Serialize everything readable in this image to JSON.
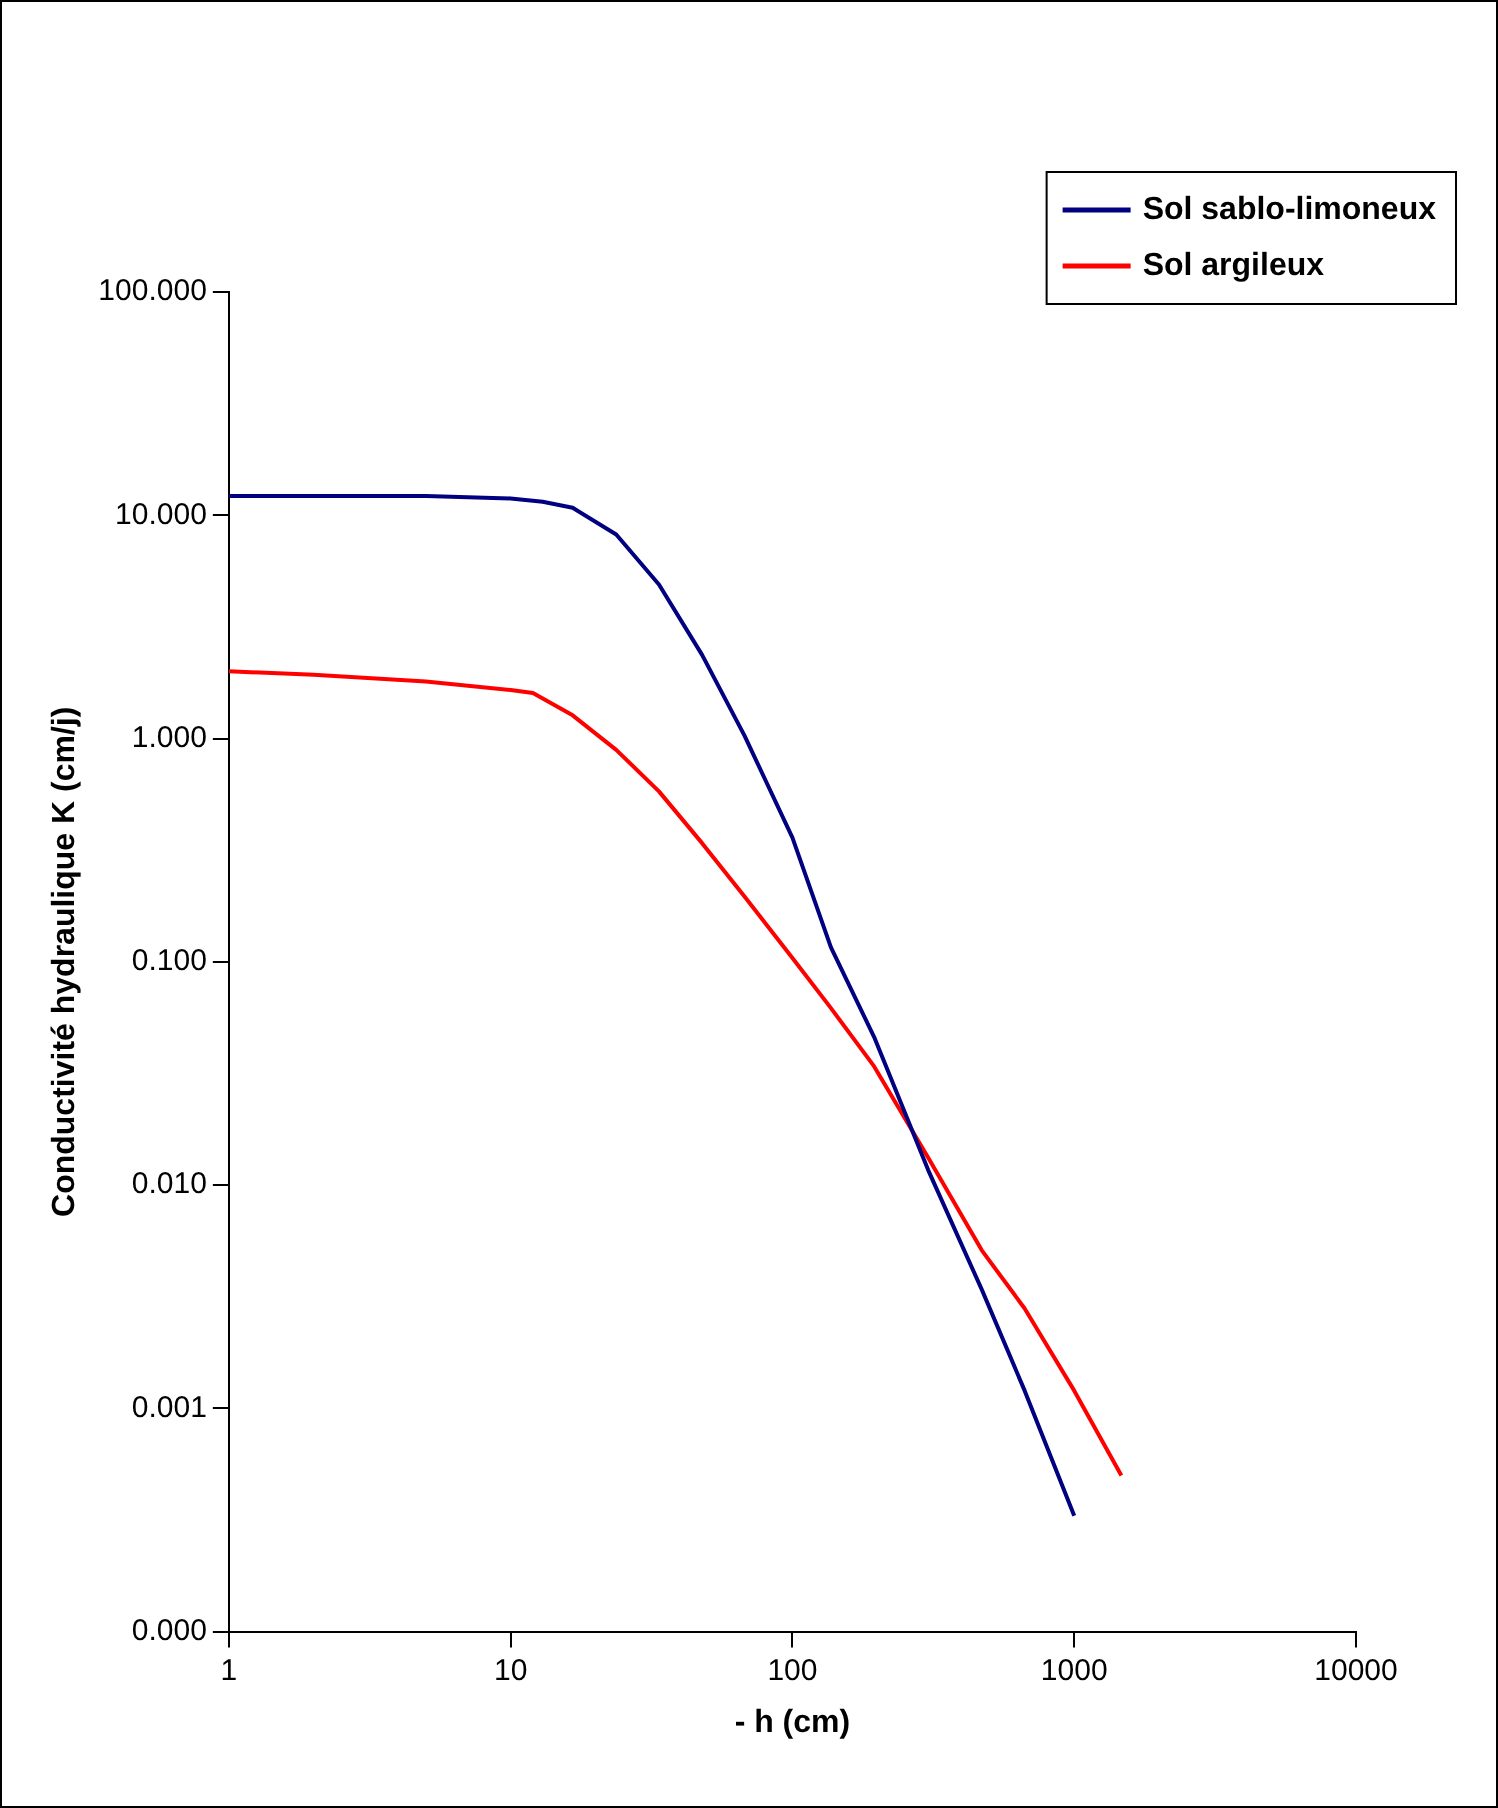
{
  "chart_data": {
    "type": "line",
    "xlabel": "- h (cm)",
    "ylabel": "Conductivité hydraulique K (cm/j)",
    "log": "xy",
    "xlim": [
      1,
      10000
    ],
    "xticks": [
      1,
      10,
      100,
      1000,
      10000
    ],
    "ylim": [
      0.0001,
      100
    ],
    "yticks": [
      {
        "value": 0.0001,
        "label": "0.000"
      },
      {
        "value": 0.001,
        "label": "0.001"
      },
      {
        "value": 0.01,
        "label": "0.010"
      },
      {
        "value": 0.1,
        "label": "0.100"
      },
      {
        "value": 1,
        "label": "1.000"
      },
      {
        "value": 10,
        "label": "10.000"
      },
      {
        "value": 100,
        "label": "100.000"
      }
    ],
    "grid": false,
    "legend": "top right",
    "marker": "none",
    "line_style": "solid",
    "series": [
      {
        "name": "Sol sablo-limoneux",
        "color": "#000080",
        "x": [
          1,
          5,
          10,
          13,
          16.6,
          23.7,
          33.6,
          47.8,
          67.6,
          100,
          137,
          195,
          303,
          470,
          667,
          1000
        ],
        "values": [
          12.2,
          12.2,
          11.9,
          11.5,
          10.8,
          8.2,
          4.9,
          2.37,
          1.03,
          0.36,
          0.116,
          0.046,
          0.0117,
          0.0034,
          0.0012,
          0.00033
        ]
      },
      {
        "name": "Sol argileux",
        "color": "#ff0000",
        "x": [
          1,
          2,
          5,
          10,
          12,
          16.6,
          23.7,
          33.6,
          47.8,
          67.6,
          100,
          137,
          195,
          303,
          470,
          667,
          1000,
          1470
        ],
        "values": [
          2.0,
          1.93,
          1.8,
          1.65,
          1.6,
          1.27,
          0.89,
          0.58,
          0.34,
          0.196,
          0.104,
          0.062,
          0.034,
          0.0133,
          0.0051,
          0.0028,
          0.0012,
          0.0005
        ]
      }
    ]
  }
}
